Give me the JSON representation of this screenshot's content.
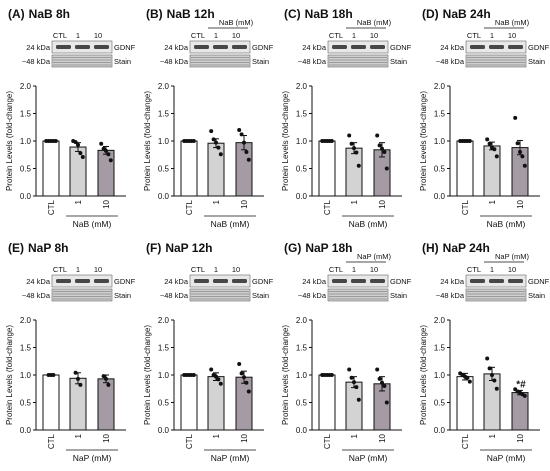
{
  "figure": {
    "panels": [
      {
        "label": "(A)",
        "title": "NaB 8h",
        "treatment": "NaB",
        "unit": "(mM)",
        "show_header": false,
        "bands": {
          "top_marker": "24 kDa",
          "top_name": "GDNF",
          "bottom_marker": "~48 kDa",
          "bottom_name": "Stain"
        },
        "chart_data": {
          "type": "bar",
          "categories": [
            "CTL",
            "1",
            "10"
          ],
          "values": [
            1.0,
            0.89,
            0.83
          ],
          "errors": [
            0.0,
            0.08,
            0.07
          ],
          "points": [
            [
              1.0,
              1.0,
              1.0,
              1.0,
              1.0
            ],
            [
              1.0,
              0.98,
              0.93,
              0.78,
              0.71
            ],
            [
              0.95,
              0.86,
              0.82,
              0.76,
              0.65
            ]
          ],
          "ylim": [
            0,
            2.0
          ],
          "yticks": [
            0.0,
            0.5,
            1.0,
            1.5,
            2.0
          ],
          "ylabel": "Protein Levels (fold-change)",
          "xlabel": "NaB (mM)",
          "bar_colors": [
            "#ffffff",
            "#d3d3d3",
            "#a49ba5"
          ],
          "annotations": [
            "",
            "",
            ""
          ]
        }
      },
      {
        "label": "(B)",
        "title": "NaB 12h",
        "treatment": "NaB",
        "unit": "(mM)",
        "show_header": true,
        "bands": {
          "top_marker": "24 kDa",
          "top_name": "GDNF",
          "bottom_marker": "~48 kDa",
          "bottom_name": "Stain"
        },
        "chart_data": {
          "type": "bar",
          "categories": [
            "CTL",
            "1",
            "10"
          ],
          "values": [
            1.0,
            0.96,
            0.97
          ],
          "errors": [
            0.0,
            0.08,
            0.13
          ],
          "points": [
            [
              1.0,
              1.0,
              1.0,
              1.0,
              1.0
            ],
            [
              1.18,
              1.03,
              0.97,
              0.88,
              0.76
            ],
            [
              1.2,
              1.12,
              0.97,
              0.8,
              0.66
            ]
          ],
          "ylim": [
            0,
            2.0
          ],
          "yticks": [
            0.0,
            0.5,
            1.0,
            1.5,
            2.0
          ],
          "ylabel": "Protein Levels (fold-change)",
          "xlabel": "NaB (mM)",
          "bar_colors": [
            "#ffffff",
            "#d3d3d3",
            "#a49ba5"
          ],
          "annotations": [
            "",
            "",
            ""
          ]
        }
      },
      {
        "label": "(C)",
        "title": "NaB 18h",
        "treatment": "NaB",
        "unit": "(mM)",
        "show_header": true,
        "bands": {
          "top_marker": "24 kDa",
          "top_name": "GDNF",
          "bottom_marker": "~48 kDa",
          "bottom_name": "Stain"
        },
        "chart_data": {
          "type": "bar",
          "categories": [
            "CTL",
            "1",
            "10"
          ],
          "values": [
            1.0,
            0.87,
            0.84
          ],
          "errors": [
            0.0,
            0.1,
            0.13
          ],
          "points": [
            [
              1.0,
              1.0,
              1.0,
              1.0,
              1.0
            ],
            [
              1.1,
              0.95,
              0.87,
              0.79,
              0.55
            ],
            [
              1.1,
              0.92,
              0.86,
              0.8,
              0.5
            ]
          ],
          "ylim": [
            0,
            2.0
          ],
          "yticks": [
            0.0,
            0.5,
            1.0,
            1.5,
            2.0
          ],
          "ylabel": "Protein Levels (fold-change)",
          "xlabel": "NaB (mM)",
          "bar_colors": [
            "#ffffff",
            "#d3d3d3",
            "#a49ba5"
          ],
          "annotations": [
            "",
            "",
            ""
          ]
        }
      },
      {
        "label": "(D)",
        "title": "NaB 24h",
        "treatment": "NaB",
        "unit": "(mM)",
        "show_header": true,
        "bands": {
          "top_marker": "24 kDa",
          "top_name": "GDNF",
          "bottom_marker": "~48 kDa",
          "bottom_name": "Stain"
        },
        "chart_data": {
          "type": "bar",
          "categories": [
            "CTL",
            "1",
            "10"
          ],
          "values": [
            1.0,
            0.91,
            0.88
          ],
          "errors": [
            0.0,
            0.07,
            0.13
          ],
          "points": [
            [
              1.0,
              1.0,
              1.0,
              1.0,
              1.0
            ],
            [
              1.03,
              0.95,
              0.88,
              0.85,
              0.72
            ],
            [
              1.42,
              0.96,
              0.8,
              0.72,
              0.55
            ]
          ],
          "ylim": [
            0,
            2.0
          ],
          "yticks": [
            0.0,
            0.5,
            1.0,
            1.5,
            2.0
          ],
          "ylabel": "Protein Levels (fold-change)",
          "xlabel": "NaB (mM)",
          "bar_colors": [
            "#ffffff",
            "#d3d3d3",
            "#a49ba5"
          ],
          "annotations": [
            "",
            "",
            ""
          ]
        }
      },
      {
        "label": "(E)",
        "title": "NaP 8h",
        "treatment": "NaP",
        "unit": "(mM)",
        "show_header": false,
        "bands": {
          "top_marker": "24 kDa",
          "top_name": "GDNF",
          "bottom_marker": "~48 kDa",
          "bottom_name": "Stain"
        },
        "chart_data": {
          "type": "bar",
          "categories": [
            "CTL",
            "1",
            "10"
          ],
          "values": [
            1.0,
            0.94,
            0.93
          ],
          "errors": [
            0.0,
            0.1,
            0.07
          ],
          "points": [
            [
              1.0,
              1.0,
              1.0
            ],
            [
              1.04,
              0.93,
              0.82
            ],
            [
              0.98,
              0.93,
              0.82
            ]
          ],
          "ylim": [
            0,
            2.0
          ],
          "yticks": [
            0.0,
            0.5,
            1.0,
            1.5,
            2.0
          ],
          "ylabel": "Protein Levels (fold-change)",
          "xlabel": "NaP (mM)",
          "bar_colors": [
            "#ffffff",
            "#d3d3d3",
            "#a49ba5"
          ],
          "annotations": [
            "",
            "",
            ""
          ]
        }
      },
      {
        "label": "(F)",
        "title": "NaP 12h",
        "treatment": "NaP",
        "unit": "(mM)",
        "show_header": false,
        "bands": {
          "top_marker": "24 kDa",
          "top_name": "GDNF",
          "bottom_marker": "~48 kDa",
          "bottom_name": "Stain"
        },
        "chart_data": {
          "type": "bar",
          "categories": [
            "CTL",
            "1",
            "10"
          ],
          "values": [
            1.0,
            0.97,
            0.96
          ],
          "errors": [
            0.0,
            0.07,
            0.11
          ],
          "points": [
            [
              1.0,
              1.0,
              1.0,
              1.0,
              1.0
            ],
            [
              1.1,
              1.0,
              0.97,
              0.92,
              0.84
            ],
            [
              1.2,
              1.03,
              0.96,
              0.86,
              0.7
            ]
          ],
          "ylim": [
            0,
            2.0
          ],
          "yticks": [
            0.0,
            0.5,
            1.0,
            1.5,
            2.0
          ],
          "ylabel": "Protein Levels (fold-change)",
          "xlabel": "NaP (mM)",
          "bar_colors": [
            "#ffffff",
            "#d3d3d3",
            "#a49ba5"
          ],
          "annotations": [
            "",
            "",
            ""
          ]
        }
      },
      {
        "label": "(G)",
        "title": "NaP 18h",
        "treatment": "NaP",
        "unit": "(mM)",
        "show_header": true,
        "bands": {
          "top_marker": "24 kDa",
          "top_name": "GDNF",
          "bottom_marker": "~48 kDa",
          "bottom_name": "Stain"
        },
        "chart_data": {
          "type": "bar",
          "categories": [
            "CTL",
            "1",
            "10"
          ],
          "values": [
            1.0,
            0.87,
            0.84
          ],
          "errors": [
            0.0,
            0.1,
            0.13
          ],
          "points": [
            [
              1.0,
              1.0,
              1.0,
              1.0,
              1.0
            ],
            [
              1.1,
              0.95,
              0.87,
              0.78,
              0.55
            ],
            [
              1.1,
              0.93,
              0.86,
              0.8,
              0.5
            ]
          ],
          "ylim": [
            0,
            2.0
          ],
          "yticks": [
            0.0,
            0.5,
            1.0,
            1.5,
            2.0
          ],
          "ylabel": "Protein Levels (fold-change)",
          "xlabel": "NaP (mM)",
          "bar_colors": [
            "#ffffff",
            "#d3d3d3",
            "#a49ba5"
          ],
          "annotations": [
            "",
            "",
            ""
          ]
        }
      },
      {
        "label": "(H)",
        "title": "NaP 24h",
        "treatment": "NaP",
        "unit": "(mM)",
        "show_header": true,
        "bands": {
          "top_marker": "24 kDa",
          "top_name": "GDNF",
          "bottom_marker": "~48 kDa",
          "bottom_name": "Stain"
        },
        "chart_data": {
          "type": "bar",
          "categories": [
            "CTL",
            "1",
            "10"
          ],
          "values": [
            0.97,
            1.02,
            0.68
          ],
          "errors": [
            0.06,
            0.12,
            0.04
          ],
          "points": [
            [
              1.03,
              1.0,
              0.97,
              0.95,
              0.88
            ],
            [
              1.3,
              1.12,
              1.0,
              0.9,
              0.75
            ],
            [
              0.74,
              0.7,
              0.68,
              0.65,
              0.62
            ]
          ],
          "ylim": [
            0,
            2.0
          ],
          "yticks": [
            0.0,
            0.5,
            1.0,
            1.5,
            2.0
          ],
          "ylabel": "Protein Levels (fold-change)",
          "xlabel": "NaP (mM)",
          "bar_colors": [
            "#ffffff",
            "#d3d3d3",
            "#a49ba5"
          ],
          "annotations": [
            "",
            "",
            "*#"
          ]
        }
      }
    ]
  }
}
